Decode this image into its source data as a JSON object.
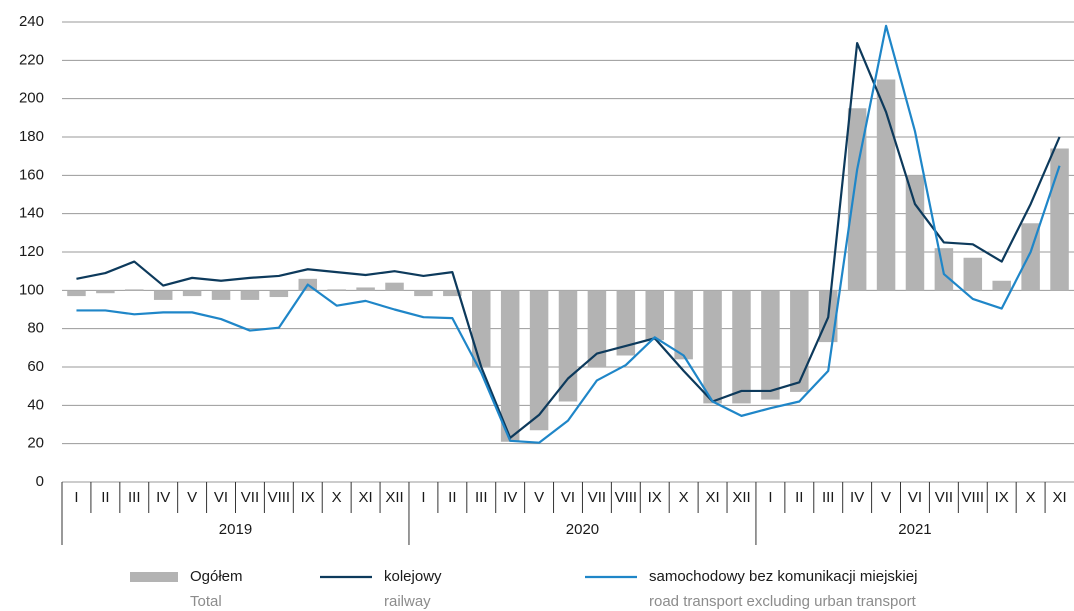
{
  "chart_data": {
    "type": "bar-line",
    "categories": [
      "I",
      "II",
      "III",
      "IV",
      "V",
      "VI",
      "VII",
      "VIII",
      "IX",
      "X",
      "XI",
      "XII",
      "I",
      "II",
      "III",
      "IV",
      "V",
      "VI",
      "VII",
      "VIII",
      "IX",
      "X",
      "XI",
      "XII",
      "I",
      "II",
      "III",
      "IV",
      "V",
      "VI",
      "VII",
      "VIII",
      "IX",
      "X",
      "XI"
    ],
    "years": [
      "2019",
      "2020",
      "2021"
    ],
    "ylim": [
      0,
      240
    ],
    "yticks": [
      0,
      20,
      40,
      60,
      80,
      100,
      120,
      140,
      160,
      180,
      200,
      220,
      240
    ],
    "grid": true,
    "bar_baseline": 100,
    "series": [
      {
        "name": "Ogółem",
        "subname": "Total",
        "kind": "bar",
        "color": "#b3b3b3",
        "values": [
          97,
          98.5,
          100.5,
          95,
          97,
          95,
          95,
          96.5,
          106,
          100.5,
          101.5,
          104,
          97,
          97,
          60,
          21,
          27,
          42,
          60,
          66,
          74,
          64,
          41,
          41,
          43,
          47,
          73,
          195,
          210,
          160,
          122,
          117,
          105,
          135,
          174
        ]
      },
      {
        "name": "kolejowy",
        "subname": "railway",
        "kind": "line",
        "color": "#0d3a5c",
        "values": [
          106,
          109,
          115,
          102.5,
          106.5,
          105,
          106.5,
          107.5,
          111,
          109.5,
          108,
          110,
          107.5,
          109.5,
          60,
          23,
          35,
          54,
          67,
          71,
          75,
          58,
          42,
          47.5,
          47.5,
          52,
          86,
          229,
          193,
          145,
          125,
          124,
          115,
          145,
          180
        ]
      },
      {
        "name": "samochodowy bez komunikacji miejskiej",
        "subname": "road transport excluding urban transport",
        "kind": "line",
        "color": "#1f86c8",
        "values": [
          89.5,
          89.5,
          87.5,
          88.5,
          88.5,
          85,
          79,
          80.5,
          103,
          92,
          94.5,
          90,
          86,
          85.5,
          57,
          21.5,
          20.5,
          32,
          53,
          61,
          75.5,
          66,
          42,
          34.5,
          38.5,
          42,
          58,
          163,
          238,
          183,
          108.5,
          95.5,
          90.5,
          120,
          165
        ]
      }
    ]
  }
}
